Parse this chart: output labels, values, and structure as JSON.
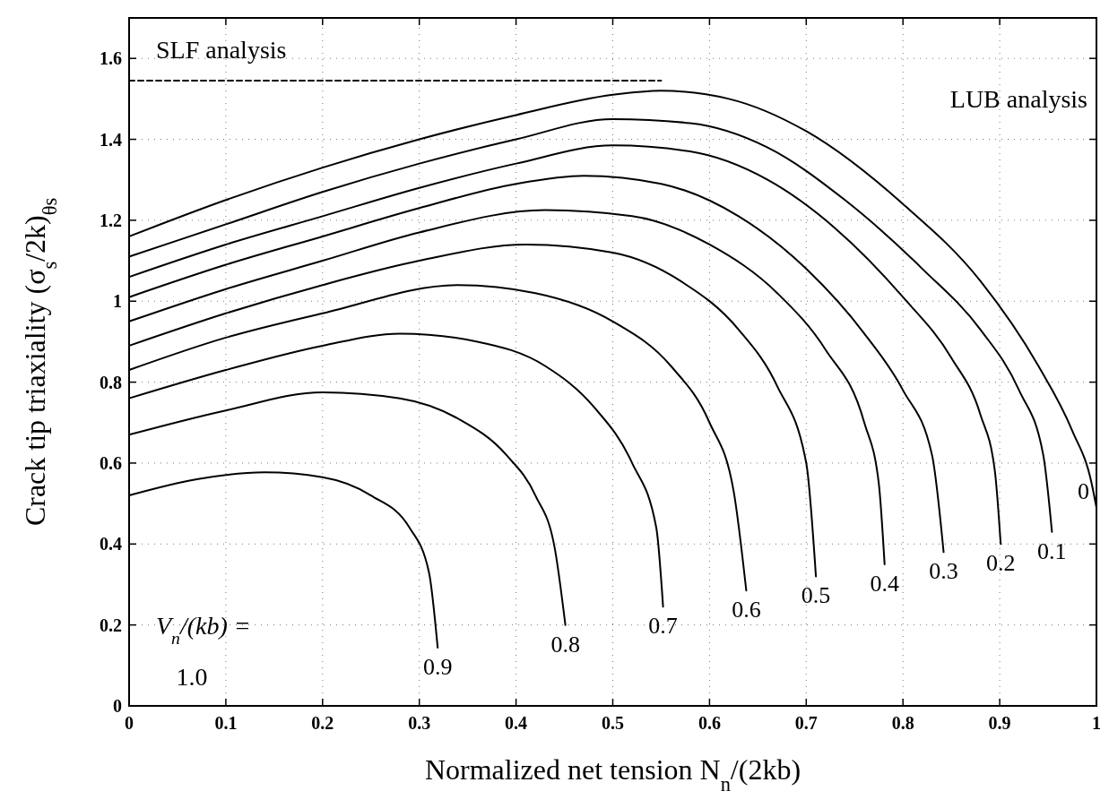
{
  "chart_data": {
    "type": "line",
    "xlabel": "Normalized net tension N$_{n}$/(2kb)",
    "ylabel": "Crack tip triaxiality (σ$_{s}$/2k)$_{θs}$",
    "xlim": [
      0,
      1
    ],
    "ylim": [
      0,
      1.7
    ],
    "xticks": [
      0,
      0.1,
      0.2,
      0.3,
      0.4,
      0.5,
      0.6,
      0.7,
      0.8,
      0.9,
      1
    ],
    "yticks": [
      0,
      0.2,
      0.4,
      0.6,
      0.8,
      1,
      1.2,
      1.4,
      1.6
    ],
    "grid": true,
    "marker": "none",
    "line_style": "solid",
    "annotations": [
      "SLF analysis",
      "LUB analysis",
      "V$_{n}$/(kb) =",
      "1.0"
    ],
    "series": [
      {
        "name": "0",
        "color": "#000000",
        "x": [
          0,
          0.1,
          0.2,
          0.3,
          0.4,
          0.5,
          0.55,
          0.62,
          0.7,
          0.8,
          0.88,
          0.94,
          0.975,
          0.995,
          1
        ],
        "values": [
          1.16,
          1.25,
          1.33,
          1.4,
          1.46,
          1.51,
          1.52,
          1.5,
          1.42,
          1.24,
          1.05,
          0.84,
          0.68,
          0.55,
          0.49
        ]
      },
      {
        "name": "0.1",
        "color": "#000000",
        "x": [
          0,
          0.1,
          0.2,
          0.3,
          0.4,
          0.5,
          0.58,
          0.66,
          0.74,
          0.82,
          0.88,
          0.92,
          0.945,
          0.954
        ],
        "values": [
          1.11,
          1.19,
          1.27,
          1.34,
          1.4,
          1.45,
          1.44,
          1.38,
          1.25,
          1.08,
          0.93,
          0.78,
          0.62,
          0.43
        ]
      },
      {
        "name": "0.2",
        "color": "#000000",
        "x": [
          0,
          0.1,
          0.2,
          0.3,
          0.4,
          0.5,
          0.58,
          0.66,
          0.73,
          0.8,
          0.85,
          0.88,
          0.895,
          0.901
        ],
        "values": [
          1.06,
          1.14,
          1.21,
          1.28,
          1.34,
          1.385,
          1.37,
          1.3,
          1.18,
          1.01,
          0.86,
          0.72,
          0.58,
          0.4
        ]
      },
      {
        "name": "0.3",
        "color": "#000000",
        "x": [
          0,
          0.1,
          0.2,
          0.3,
          0.4,
          0.47,
          0.55,
          0.63,
          0.7,
          0.76,
          0.8,
          0.83,
          0.842
        ],
        "values": [
          1.01,
          1.09,
          1.16,
          1.23,
          1.29,
          1.31,
          1.29,
          1.21,
          1.08,
          0.92,
          0.78,
          0.62,
          0.38
        ]
      },
      {
        "name": "0.4",
        "color": "#000000",
        "x": [
          0,
          0.1,
          0.2,
          0.3,
          0.43,
          0.52,
          0.6,
          0.67,
          0.72,
          0.76,
          0.775,
          0.781
        ],
        "values": [
          0.95,
          1.03,
          1.1,
          1.17,
          1.225,
          1.21,
          1.14,
          1.02,
          0.88,
          0.7,
          0.55,
          0.35
        ]
      },
      {
        "name": "0.5",
        "color": "#000000",
        "x": [
          0,
          0.1,
          0.2,
          0.3,
          0.41,
          0.5,
          0.57,
          0.63,
          0.67,
          0.7,
          0.71
        ],
        "values": [
          0.89,
          0.97,
          1.04,
          1.1,
          1.14,
          1.12,
          1.05,
          0.93,
          0.79,
          0.6,
          0.32
        ]
      },
      {
        "name": "0.6",
        "color": "#000000",
        "x": [
          0,
          0.1,
          0.2,
          0.34,
          0.42,
          0.5,
          0.56,
          0.6,
          0.625,
          0.638
        ],
        "values": [
          0.83,
          0.91,
          0.97,
          1.04,
          1.02,
          0.95,
          0.84,
          0.7,
          0.53,
          0.285
        ]
      },
      {
        "name": "0.7",
        "color": "#000000",
        "x": [
          0,
          0.1,
          0.2,
          0.28,
          0.36,
          0.43,
          0.48,
          0.52,
          0.545,
          0.552
        ],
        "values": [
          0.76,
          0.83,
          0.89,
          0.92,
          0.9,
          0.84,
          0.74,
          0.6,
          0.44,
          0.245
        ]
      },
      {
        "name": "0.8",
        "color": "#000000",
        "x": [
          0,
          0.1,
          0.2,
          0.28,
          0.34,
          0.39,
          0.42,
          0.44,
          0.451
        ],
        "values": [
          0.67,
          0.73,
          0.775,
          0.76,
          0.71,
          0.62,
          0.52,
          0.39,
          0.2
        ]
      },
      {
        "name": "0.9",
        "color": "#000000",
        "x": [
          0,
          0.07,
          0.14,
          0.2,
          0.25,
          0.29,
          0.31,
          0.319
        ],
        "values": [
          0.52,
          0.56,
          0.577,
          0.565,
          0.52,
          0.44,
          0.33,
          0.144
        ]
      },
      {
        "color": "#000000",
        "line_style": "dashed",
        "x": [
          0,
          0.55
        ],
        "values": [
          1.545,
          1.545
        ]
      }
    ]
  }
}
